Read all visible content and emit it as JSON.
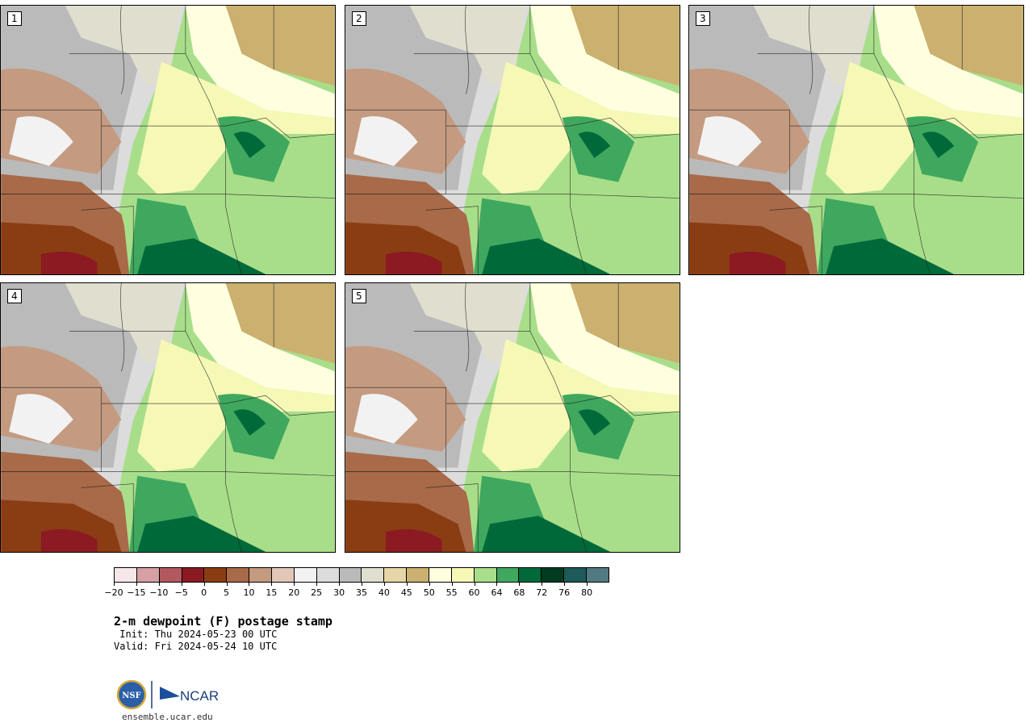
{
  "panels": [
    {
      "label": "1"
    },
    {
      "label": "2"
    },
    {
      "label": "3"
    },
    {
      "label": "4"
    },
    {
      "label": "5"
    }
  ],
  "colorbar": {
    "colors": [
      "#f6e8ea",
      "#d6a0a5",
      "#b3585f",
      "#8b1a22",
      "#8a3d12",
      "#a86a48",
      "#c49a80",
      "#e2c7b8",
      "#f2f2f2",
      "#dcdcdc",
      "#bababa",
      "#e0dfcf",
      "#e6d6a8",
      "#cbb070",
      "#ffffe0",
      "#f6f8b6",
      "#a8de8a",
      "#3fa85e",
      "#00693a",
      "#003b22",
      "#1d5a5a",
      "#527a82"
    ],
    "ticks": [
      "−20",
      "−15",
      "−10",
      "−5",
      "0",
      "5",
      "10",
      "15",
      "20",
      "25",
      "30",
      "35",
      "40",
      "45",
      "50",
      "55",
      "60",
      "64",
      "68",
      "72",
      "76",
      "80"
    ]
  },
  "title": "2-m dewpoint (F) postage stamp",
  "init_line": " Init: Thu 2024-05-23 00 UTC",
  "valid_line": "Valid: Fri 2024-05-24 10 UTC",
  "logo": {
    "nsf": "NSF",
    "ncar": "NCAR"
  },
  "site": "ensemble.ucar.edu"
}
